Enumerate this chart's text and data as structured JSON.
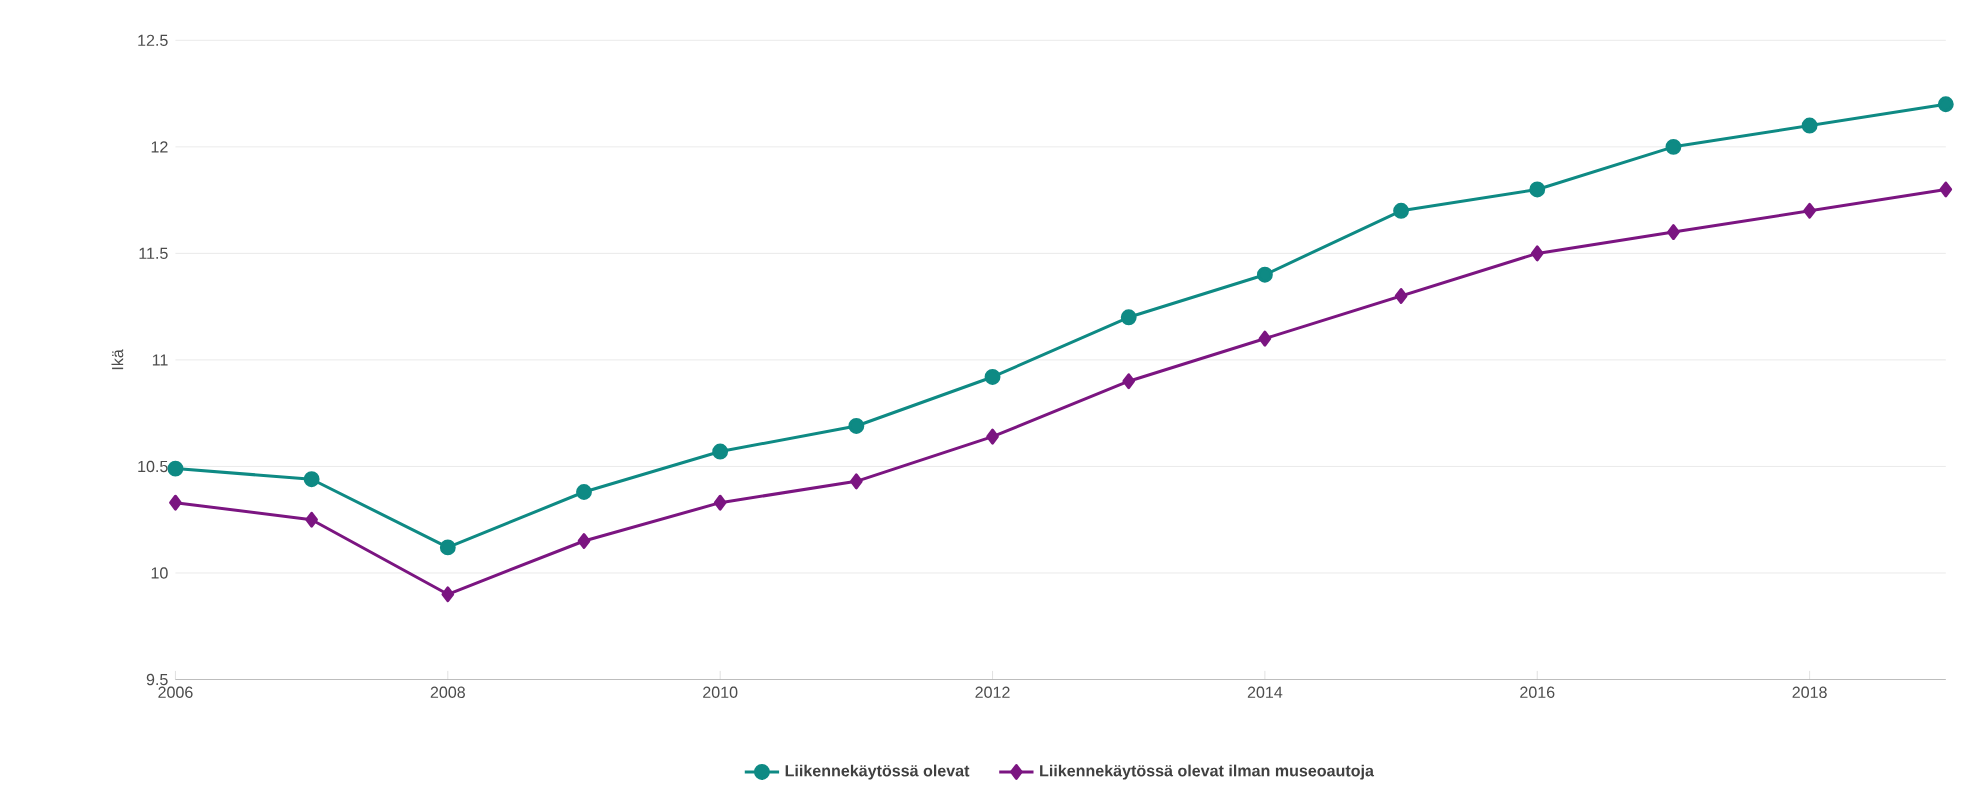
{
  "chart_data": {
    "type": "line",
    "ylabel": "Ikä",
    "x": [
      2006,
      2007,
      2008,
      2009,
      2010,
      2011,
      2012,
      2013,
      2014,
      2015,
      2016,
      2017,
      2018,
      2019
    ],
    "xlim": [
      2006,
      2019
    ],
    "xticks": [
      2006,
      2008,
      2010,
      2012,
      2014,
      2016,
      2018
    ],
    "ylim": [
      9.5,
      12.5
    ],
    "yticks": [
      9.5,
      10,
      10.5,
      11,
      11.5,
      12,
      12.5
    ],
    "grid": "y",
    "legend": "bottom",
    "line_style": "solid",
    "series": [
      {
        "name": "Liikennekäytössä olevat",
        "color": "#0e8a84",
        "marker": "circle",
        "values": [
          10.49,
          10.44,
          10.12,
          10.38,
          10.57,
          10.69,
          10.92,
          11.2,
          11.4,
          11.7,
          11.8,
          12.0,
          12.1,
          12.2
        ]
      },
      {
        "name": "Liikennekäytössä olevat ilman museoautoja",
        "color": "#7b1581",
        "marker": "diamond",
        "values": [
          10.33,
          10.25,
          9.9,
          10.15,
          10.33,
          10.43,
          10.64,
          10.9,
          11.1,
          11.3,
          11.5,
          11.6,
          11.7,
          11.8
        ]
      }
    ]
  }
}
